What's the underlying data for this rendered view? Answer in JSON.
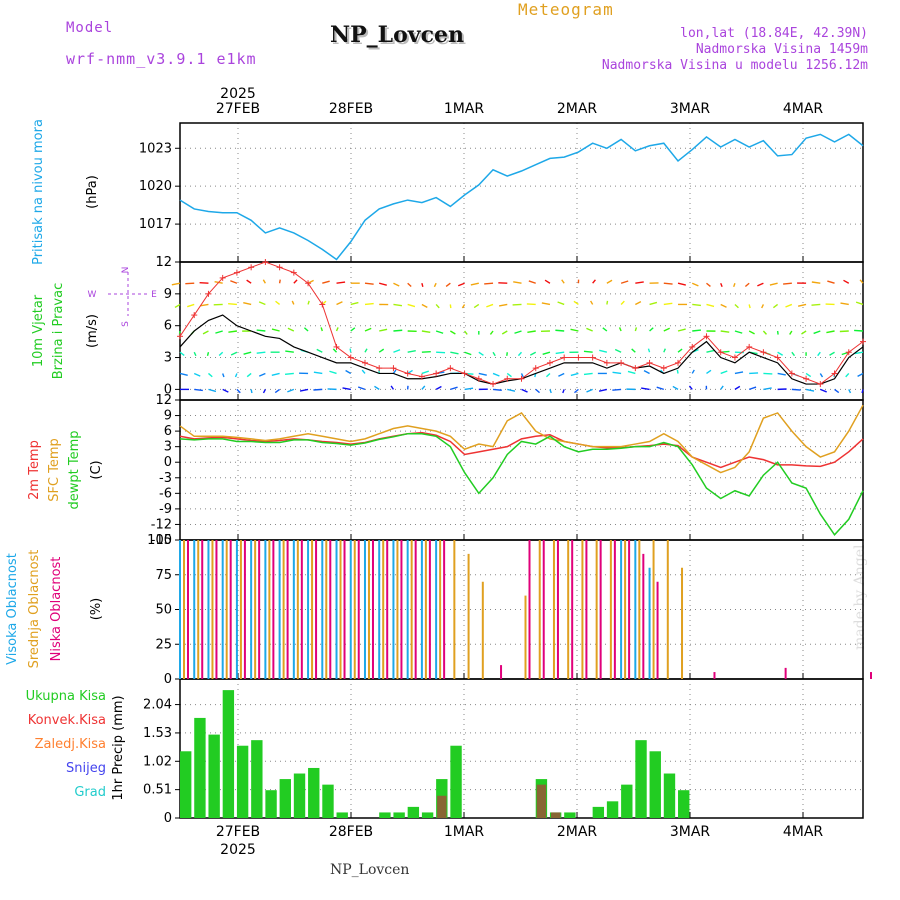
{
  "header": {
    "model_label": "Model",
    "model_name": "wrf-nmm_v3.9.1 e1km",
    "title": "NP_Lovcen",
    "subtitle": "Meteogram",
    "coords": "lon,lat (18.84E, 42.39N)",
    "altitude": "Nadmorska Visina 1459m",
    "model_altitude": "Nadmorska Visina u modelu 1256.12m",
    "footer": "NP_Lovcen",
    "watermark": "made by Angel"
  },
  "colors": {
    "pressure": "#1ea8e8",
    "temp2m": "#ee3333",
    "sfc_temp": "#e0a020",
    "dewpt": "#22cc22",
    "high_cloud": "#1ea8e8",
    "mid_cloud": "#e0a020",
    "low_cloud": "#e0007a",
    "total_precip": "#22cc22",
    "conv_precip": "#ee3333",
    "frozen_precip": "#ff8030",
    "snow": "#4444ee",
    "graupel": "#22cccc",
    "axis_title_purple": "#aa44dd"
  },
  "chart_data": [
    {
      "type": "line",
      "panel": "pressure",
      "title_lines": [
        "Pritisak na nivou mora"
      ],
      "unit": "(hPa)",
      "x_label_top": [
        "27FEB",
        "28FEB",
        "1MAR",
        "2MAR",
        "3MAR",
        "4MAR"
      ],
      "x_year_top": "2025",
      "yticks": [
        1017,
        1020,
        1023
      ],
      "ylim": [
        1014,
        1025
      ],
      "grid": true,
      "x_hours": [
        0,
        3,
        6,
        9,
        12,
        15,
        18,
        21,
        24,
        27,
        30,
        33,
        36,
        39,
        42,
        45,
        48,
        51,
        54,
        57,
        60,
        63,
        66,
        69,
        72,
        75,
        78,
        81,
        84,
        87,
        90,
        93,
        96,
        99,
        102,
        105,
        108,
        111,
        114,
        117,
        120,
        123,
        126,
        129,
        132,
        135,
        138,
        141,
        144
      ],
      "values": [
        1018.9,
        1018.2,
        1018.0,
        1017.9,
        1017.9,
        1017.3,
        1016.3,
        1016.7,
        1016.3,
        1015.7,
        1015.0,
        1014.2,
        1015.6,
        1017.3,
        1018.2,
        1018.6,
        1018.9,
        1018.7,
        1019.1,
        1018.4,
        1019.3,
        1020.1,
        1021.3,
        1020.8,
        1021.2,
        1021.7,
        1022.2,
        1022.3,
        1022.7,
        1023.4,
        1023.0,
        1023.7,
        1022.8,
        1023.2,
        1023.4,
        1022.0,
        1022.9,
        1023.9,
        1023.1,
        1023.7,
        1023.1,
        1023.6,
        1022.4,
        1022.5,
        1023.8,
        1024.1,
        1023.5,
        1024.1,
        1023.2
      ]
    },
    {
      "type": "line",
      "panel": "wind",
      "title_lines": [
        "10m Vjetar",
        "Brzina i Pravac"
      ],
      "unit": "(m/s)",
      "compass": [
        "N",
        "W",
        "E",
        "S"
      ],
      "yticks": [
        0,
        3,
        6,
        9,
        12
      ],
      "ylim": [
        -1,
        12
      ],
      "grid": true,
      "x_hours": [
        0,
        3,
        6,
        9,
        12,
        15,
        18,
        21,
        24,
        27,
        30,
        33,
        36,
        39,
        42,
        45,
        48,
        51,
        54,
        57,
        60,
        63,
        66,
        69,
        72,
        75,
        78,
        81,
        84,
        87,
        90,
        93,
        96,
        99,
        102,
        105,
        108,
        111,
        114,
        117,
        120,
        123,
        126,
        129,
        132,
        135,
        138,
        141,
        144
      ],
      "speed": [
        4.0,
        5.5,
        6.5,
        7.0,
        6.0,
        5.5,
        5.0,
        4.8,
        4.0,
        3.5,
        3.0,
        2.5,
        2.5,
        2.0,
        1.5,
        1.5,
        1.0,
        1.0,
        1.2,
        1.5,
        1.5,
        0.8,
        0.5,
        0.8,
        1.0,
        1.5,
        2.0,
        2.5,
        2.5,
        2.5,
        2.0,
        2.5,
        2.0,
        2.2,
        1.5,
        2.0,
        3.5,
        4.5,
        3.0,
        2.5,
        3.5,
        3.0,
        2.5,
        1.0,
        0.5,
        0.5,
        1.0,
        3.0,
        4.0
      ],
      "gust": [
        5.0,
        7.0,
        9.0,
        10.5,
        11.0,
        11.5,
        12.0,
        11.5,
        11.0,
        10.0,
        8.0,
        4.0,
        3.0,
        2.5,
        2.0,
        2.0,
        1.5,
        1.2,
        1.5,
        2.0,
        1.5,
        1.0,
        0.5,
        1.0,
        1.0,
        2.0,
        2.5,
        3.0,
        3.0,
        3.0,
        2.5,
        2.5,
        2.0,
        2.5,
        2.0,
        2.5,
        4.0,
        5.0,
        3.5,
        3.0,
        4.0,
        3.5,
        3.0,
        1.5,
        1.0,
        0.5,
        1.5,
        3.5,
        4.5
      ]
    },
    {
      "type": "line",
      "panel": "temperature",
      "title_lines": [
        "2m Temp",
        "SFC Temp",
        "dewpt Temp"
      ],
      "unit": "(C)",
      "yticks": [
        -15,
        -12,
        -9,
        -6,
        -3,
        0,
        3,
        6,
        9,
        12
      ],
      "ylim": [
        -15,
        12
      ],
      "grid": true,
      "x_hours": [
        0,
        3,
        6,
        9,
        12,
        15,
        18,
        21,
        24,
        27,
        30,
        33,
        36,
        39,
        42,
        45,
        48,
        51,
        54,
        57,
        60,
        63,
        66,
        69,
        72,
        75,
        78,
        81,
        84,
        87,
        90,
        93,
        96,
        99,
        102,
        105,
        108,
        111,
        114,
        117,
        120,
        123,
        126,
        129,
        132,
        135,
        138,
        141,
        144
      ],
      "series": [
        {
          "name": "2m Temp",
          "values": [
            5.0,
            4.5,
            4.7,
            4.8,
            4.5,
            4.2,
            4.0,
            4.2,
            4.5,
            4.3,
            4.0,
            3.8,
            3.5,
            3.8,
            4.5,
            5.0,
            5.5,
            5.7,
            5.2,
            4.0,
            1.5,
            2.0,
            2.5,
            3.0,
            4.5,
            5.0,
            5.3,
            4.0,
            3.5,
            3.0,
            2.8,
            2.8,
            3.0,
            3.2,
            3.5,
            3.2,
            1.0,
            0.0,
            -1.0,
            0.0,
            1.0,
            0.5,
            -0.5,
            -0.5,
            -0.7,
            -0.8,
            0.0,
            2.0,
            4.5
          ]
        },
        {
          "name": "SFC Temp",
          "values": [
            7.0,
            5.0,
            5.0,
            5.0,
            4.8,
            4.5,
            4.2,
            4.5,
            5.0,
            5.5,
            5.0,
            4.5,
            4.0,
            4.5,
            5.5,
            6.5,
            7.0,
            6.5,
            6.0,
            5.0,
            2.5,
            3.5,
            3.0,
            8.0,
            9.5,
            6.0,
            4.5,
            4.0,
            3.5,
            3.0,
            3.0,
            3.0,
            3.5,
            4.0,
            5.5,
            4.0,
            1.0,
            -0.5,
            -2.0,
            -1.0,
            2.0,
            8.5,
            9.5,
            6.0,
            3.0,
            1.0,
            2.0,
            6.0,
            11.0
          ]
        },
        {
          "name": "dewpt Temp",
          "values": [
            4.5,
            4.3,
            4.5,
            4.5,
            4.0,
            4.0,
            3.8,
            3.8,
            4.3,
            4.3,
            3.8,
            3.6,
            3.3,
            3.7,
            4.4,
            4.9,
            5.5,
            5.5,
            5.0,
            3.0,
            -2.0,
            -6.0,
            -3.0,
            1.5,
            4.0,
            3.5,
            5.0,
            3.0,
            2.0,
            2.5,
            2.5,
            2.7,
            3.0,
            3.0,
            3.8,
            3.0,
            -0.5,
            -5.0,
            -7.0,
            -5.5,
            -6.5,
            -2.5,
            0.0,
            -4.0,
            -5.0,
            -10.0,
            -14.0,
            -11.0,
            -5.5
          ]
        }
      ]
    },
    {
      "type": "bar",
      "panel": "clouds",
      "title_lines": [
        "Visoka Oblacnost",
        "Srednja Oblacnost",
        "Niska Oblacnost"
      ],
      "unit": "(%)",
      "yticks": [
        0,
        25,
        50,
        75,
        100
      ],
      "ylim": [
        0,
        100
      ],
      "grid": true,
      "x_hours": [
        0,
        3,
        6,
        9,
        12,
        15,
        18,
        21,
        24,
        27,
        30,
        33,
        36,
        39,
        42,
        45,
        48,
        51,
        54,
        57,
        60,
        63,
        66,
        69,
        72,
        75,
        78,
        81,
        84,
        87,
        90,
        93,
        96,
        99,
        102,
        105,
        108,
        111,
        114,
        117,
        120,
        123,
        126,
        129,
        132,
        135,
        138,
        141,
        144
      ],
      "series": [
        {
          "name": "Visoka Oblacnost",
          "values": [
            100,
            100,
            100,
            100,
            100,
            100,
            100,
            100,
            100,
            100,
            100,
            100,
            100,
            100,
            100,
            100,
            100,
            100,
            100,
            0,
            0,
            0,
            0,
            0,
            0,
            0,
            0,
            0,
            0,
            0,
            0,
            100,
            100,
            80,
            0,
            0,
            0,
            0,
            0,
            0,
            0,
            0,
            0,
            0,
            0,
            0,
            0,
            0,
            0
          ]
        },
        {
          "name": "Srednja Oblacnost",
          "values": [
            100,
            100,
            100,
            100,
            100,
            100,
            100,
            100,
            100,
            100,
            100,
            100,
            100,
            100,
            100,
            100,
            100,
            100,
            100,
            100,
            90,
            70,
            0,
            0,
            60,
            100,
            100,
            100,
            100,
            100,
            100,
            100,
            100,
            100,
            100,
            80,
            0,
            0,
            0,
            0,
            0,
            0,
            0,
            0,
            0,
            0,
            0,
            0,
            0
          ]
        },
        {
          "name": "Niska Oblacnost",
          "values": [
            100,
            100,
            100,
            100,
            100,
            100,
            100,
            100,
            100,
            100,
            100,
            100,
            100,
            100,
            100,
            100,
            100,
            100,
            100,
            0,
            0,
            0,
            10,
            0,
            100,
            100,
            100,
            100,
            100,
            100,
            100,
            100,
            90,
            70,
            0,
            0,
            0,
            5,
            0,
            0,
            0,
            0,
            8,
            0,
            0,
            0,
            0,
            0,
            5
          ]
        }
      ]
    },
    {
      "type": "bar",
      "panel": "precipitation",
      "legend": [
        "Ukupna Kisa",
        "Konvek.Kisa",
        "Zaledj.Kisa",
        "Snijeg",
        "Grad"
      ],
      "ylabel": "1hr Precip (mm)",
      "yticks": [
        0,
        0.51,
        1.02,
        1.53,
        2.04
      ],
      "ylim": [
        0,
        2.5
      ],
      "x_label_bottom": [
        "27FEB",
        "28FEB",
        "1MAR",
        "2MAR",
        "3MAR",
        "4MAR"
      ],
      "x_year_bottom": "2025",
      "grid": true,
      "x_hours": [
        0,
        3,
        6,
        9,
        12,
        15,
        18,
        21,
        24,
        27,
        30,
        33,
        36,
        39,
        42,
        45,
        48,
        51,
        54,
        57,
        60,
        63,
        66,
        69,
        72,
        75,
        78,
        81,
        84,
        87,
        90,
        93,
        96,
        99,
        102,
        105,
        108,
        111,
        114,
        117,
        120,
        123,
        126,
        129,
        132,
        135,
        138,
        141,
        144
      ],
      "total": [
        1.2,
        1.8,
        1.5,
        2.3,
        1.3,
        1.4,
        0.5,
        0.7,
        0.8,
        0.9,
        0.6,
        0.1,
        0.0,
        0.0,
        0.1,
        0.1,
        0.2,
        0.1,
        0.7,
        1.3,
        0.0,
        0.0,
        0.0,
        0.0,
        0.0,
        0.7,
        0.1,
        0.1,
        0.0,
        0.2,
        0.3,
        0.6,
        1.4,
        1.2,
        0.8,
        0.5,
        0.0,
        0.0,
        0.0,
        0.0,
        0.0,
        0.0,
        0.0,
        0.0,
        0.0,
        0.0,
        0.0,
        0.0,
        0.0
      ],
      "convective": [
        0,
        0,
        0,
        0,
        0,
        0,
        0,
        0,
        0,
        0,
        0,
        0,
        0,
        0,
        0,
        0,
        0,
        0,
        0.4,
        0,
        0,
        0,
        0,
        0,
        0,
        0.6,
        0.1,
        0,
        0,
        0,
        0,
        0,
        0,
        0,
        0,
        0,
        0,
        0,
        0,
        0,
        0,
        0,
        0,
        0,
        0,
        0,
        0,
        0,
        0
      ]
    }
  ]
}
